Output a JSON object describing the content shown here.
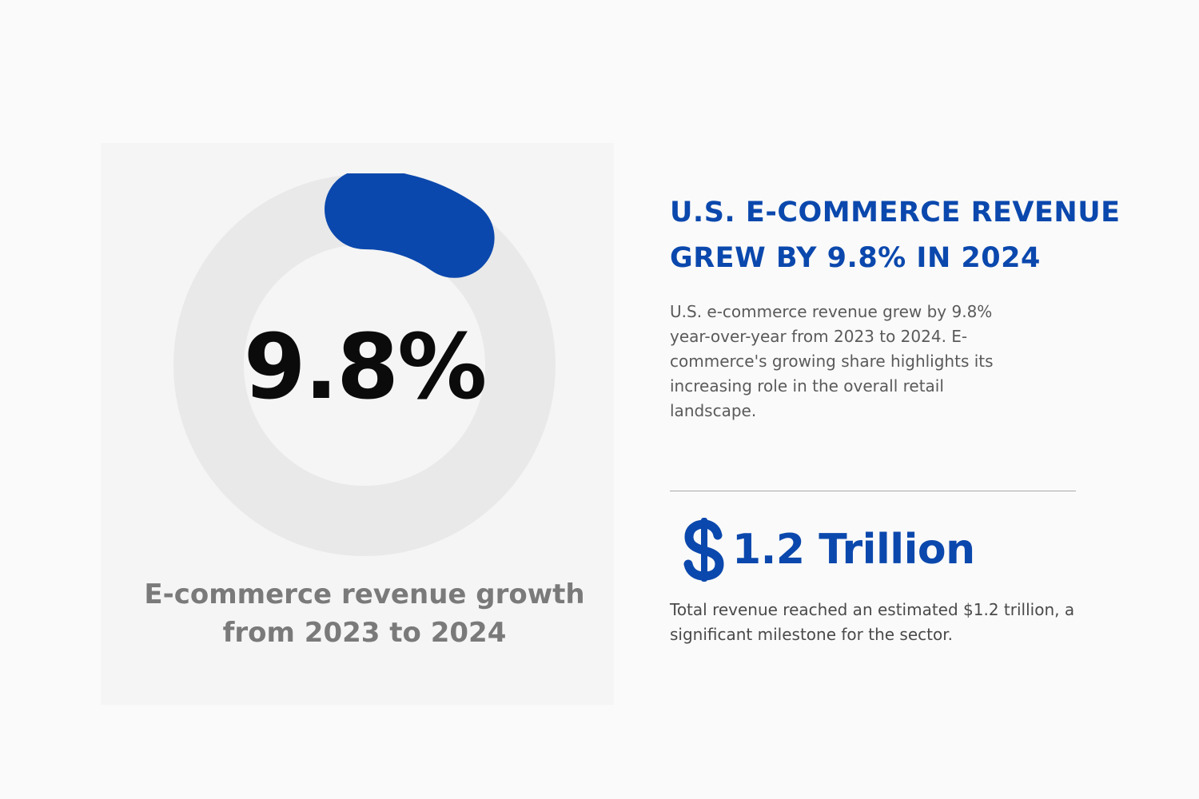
{
  "colors": {
    "page_background": "#fafafa",
    "card_background": "#f5f5f5",
    "ring_track": "#e9e9e9",
    "accent_blue": "#0b48ad",
    "dark_text": "#0b0b0b",
    "caption_gray": "#7a7a7a",
    "body_text": "#5a5a5a"
  },
  "ring": {
    "value_percent": 9.8,
    "center_label": "9.8%",
    "caption_line1": "E-commerce revenue growth",
    "caption_line2": "from 2023 to 2024"
  },
  "headline": {
    "line1": "U.S. E-COMMERCE REVENUE",
    "line2": "GREW BY 9.8% IN 2024"
  },
  "description": {
    "text": "U.S. e-commerce revenue grew by 9.8% year-over-year from 2023 to 2024. E-commerce's growing share highlights its increasing role in the overall retail landscape."
  },
  "stat": {
    "icon": "dollar-sign-icon",
    "value": "1.2 Trillion",
    "note": "Total revenue reached an estimated $1.2 trillion, a significant milestone for the sector."
  }
}
